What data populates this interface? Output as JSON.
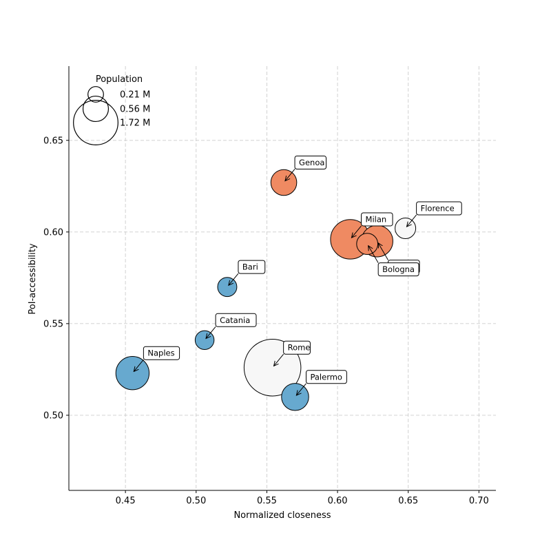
{
  "chart_data": {
    "type": "scatter",
    "title": "",
    "xlabel": "Normalized closeness",
    "ylabel": "PoI-accessibility",
    "xlim": [
      0.41,
      0.712
    ],
    "ylim": [
      0.459,
      0.6905
    ],
    "xticks": [
      0.45,
      0.5,
      0.55,
      0.6,
      0.65,
      0.7
    ],
    "xtick_labels": [
      "0.45",
      "0.50",
      "0.55",
      "0.60",
      "0.65",
      "0.70"
    ],
    "yticks": [
      0.5,
      0.55,
      0.6,
      0.65
    ],
    "ytick_labels": [
      "0.50",
      "0.55",
      "0.60",
      "0.65"
    ],
    "grid": true,
    "legend": {
      "title": "Population",
      "placement": "top-left",
      "entries": [
        {
          "label": "0.21 M",
          "population_m": 0.21
        },
        {
          "label": "0.56 M",
          "population_m": 0.56
        },
        {
          "label": "1.72 M",
          "population_m": 1.72
        }
      ]
    },
    "colors": {
      "north": "#ef8a62",
      "centre": "#f7f7f7",
      "south": "#67a9cf",
      "edge": "#000000"
    },
    "points": [
      {
        "name": "Rome",
        "x": 0.554,
        "y": 0.526,
        "population_m": 2.8,
        "group": "centre",
        "label_dir": "ur"
      },
      {
        "name": "Milan",
        "x": 0.609,
        "y": 0.596,
        "population_m": 1.35,
        "group": "north",
        "label_dir": "ur"
      },
      {
        "name": "Naples",
        "x": 0.455,
        "y": 0.523,
        "population_m": 0.96,
        "group": "south",
        "label_dir": "ur"
      },
      {
        "name": "Turin",
        "x": 0.628,
        "y": 0.595,
        "population_m": 0.86,
        "group": "north",
        "label_dir": "dr"
      },
      {
        "name": "Palermo",
        "x": 0.57,
        "y": 0.51,
        "population_m": 0.64,
        "group": "south",
        "label_dir": "ur"
      },
      {
        "name": "Genoa",
        "x": 0.562,
        "y": 0.627,
        "population_m": 0.58,
        "group": "north",
        "label_dir": "ur"
      },
      {
        "name": "Bologna",
        "x": 0.621,
        "y": 0.5935,
        "population_m": 0.39,
        "group": "north",
        "label_dir": "dr"
      },
      {
        "name": "Florence",
        "x": 0.648,
        "y": 0.602,
        "population_m": 0.37,
        "group": "centre",
        "label_dir": "ur"
      },
      {
        "name": "Bari",
        "x": 0.522,
        "y": 0.57,
        "population_m": 0.32,
        "group": "south",
        "label_dir": "ur"
      },
      {
        "name": "Catania",
        "x": 0.506,
        "y": 0.541,
        "population_m": 0.31,
        "group": "south",
        "label_dir": "ur"
      }
    ]
  }
}
